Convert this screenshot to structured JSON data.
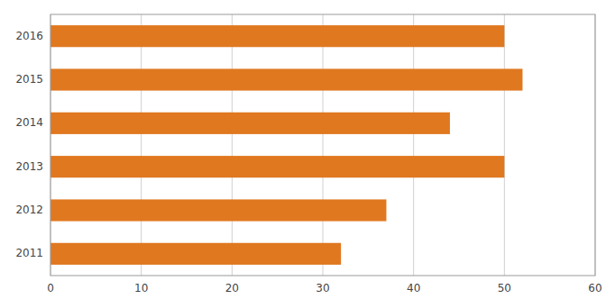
{
  "chart_data": {
    "type": "bar",
    "orientation": "horizontal",
    "categories": [
      "2011",
      "2012",
      "2013",
      "2014",
      "2015",
      "2016"
    ],
    "values": [
      32,
      37,
      50,
      44,
      52,
      50
    ],
    "color": "#E07820",
    "xlim": [
      0,
      60
    ],
    "xticks": [
      0,
      10,
      20,
      30,
      40,
      50,
      60
    ],
    "grid": true
  }
}
